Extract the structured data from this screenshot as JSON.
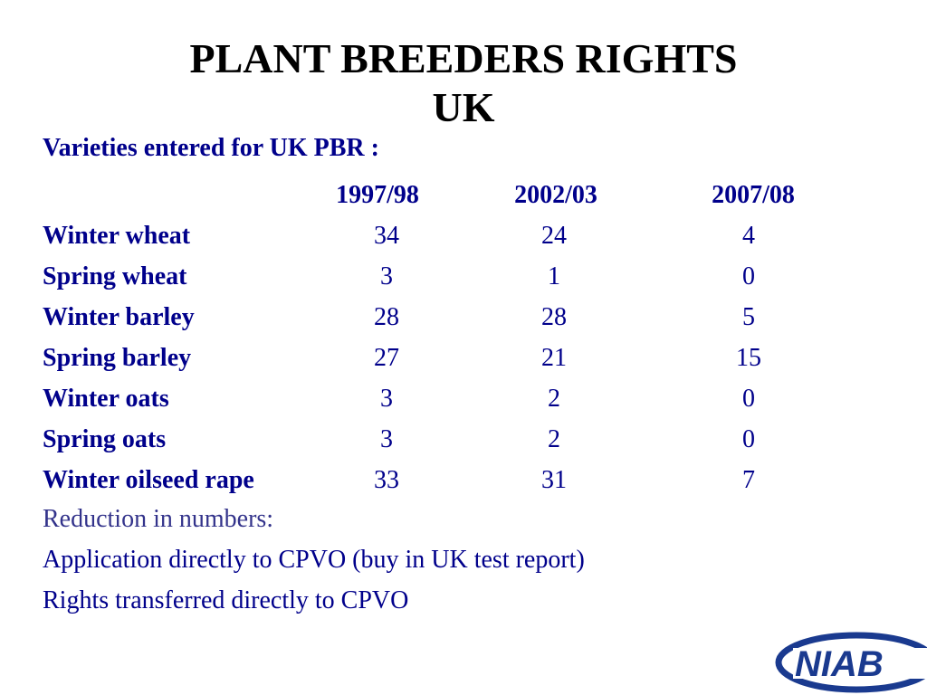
{
  "title": {
    "line1": "PLANT BREEDERS RIGHTS",
    "line2": "UK"
  },
  "subtitle": "Varieties entered for UK PBR :",
  "table": {
    "columns": [
      "1997/98",
      "2002/03",
      "2007/08"
    ],
    "rows": [
      {
        "name": "Winter wheat",
        "v": [
          "34",
          "24",
          "4"
        ]
      },
      {
        "name": "Spring wheat",
        "v": [
          "3",
          "1",
          "0"
        ]
      },
      {
        "name": "Winter barley",
        "v": [
          "28",
          "28",
          "5"
        ]
      },
      {
        "name": "Spring barley",
        "v": [
          "27",
          "21",
          "15"
        ]
      },
      {
        "name": "Winter oats",
        "v": [
          "3",
          "2",
          "0"
        ]
      },
      {
        "name": "Spring oats",
        "v": [
          "3",
          "2",
          "0"
        ]
      },
      {
        "name": "Winter oilseed rape",
        "v": [
          "33",
          "31",
          "7"
        ]
      }
    ]
  },
  "notes": [
    "Reduction in numbers:",
    "Application directly to CPVO (buy in UK test report)",
    "Rights transferred directly to CPVO"
  ],
  "logo": {
    "text": "NIAB",
    "color": "#1a3a8f"
  },
  "colors": {
    "title": "#000000",
    "body": "#00008b"
  }
}
